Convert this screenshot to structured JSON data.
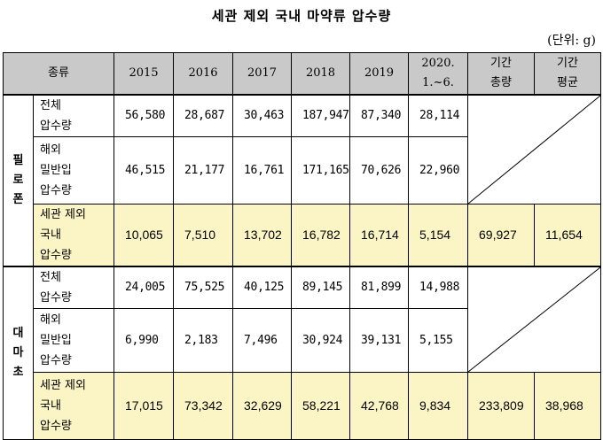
{
  "title": "세관 제외 국내 마약류 압수량",
  "unit": "(단위: g)",
  "table": {
    "headers": [
      "종류",
      "2015",
      "2016",
      "2017",
      "2018",
      "2019",
      "2020.\n1.~6.",
      "기간\n총량",
      "기간\n평균"
    ],
    "groups": [
      {
        "name": "필\n로\n폰",
        "rows": [
          {
            "label": "전체\n압수량",
            "values": [
              "56,580",
              "28,687",
              "30,463",
              "187,947",
              "87,340",
              "28,114"
            ]
          },
          {
            "label": "해외\n밀반입\n압수량",
            "values": [
              "46,515",
              "21,177",
              "16,761",
              "171,165",
              "70,626",
              "22,960"
            ]
          },
          {
            "label": "세관 제외\n국내\n압수량",
            "values": [
              "10,065",
              "7,510",
              "13,702",
              "16,782",
              "16,714",
              "5,154"
            ],
            "total": "69,927",
            "average": "11,654"
          }
        ]
      },
      {
        "name": "대\n마\n초",
        "rows": [
          {
            "label": "전체\n압수량",
            "values": [
              "24,005",
              "75,525",
              "40,125",
              "89,145",
              "81,899",
              "14,988"
            ]
          },
          {
            "label": "해외\n밀반입\n압수량",
            "values": [
              "6,990",
              "2,183",
              "7,496",
              "30,924",
              "39,131",
              "5,155"
            ]
          },
          {
            "label": "세관 제외\n국내\n압수량",
            "values": [
              "17,015",
              "73,342",
              "32,629",
              "58,221",
              "42,768",
              "9,834"
            ],
            "total": "233,809",
            "average": "38,968"
          }
        ]
      }
    ]
  }
}
